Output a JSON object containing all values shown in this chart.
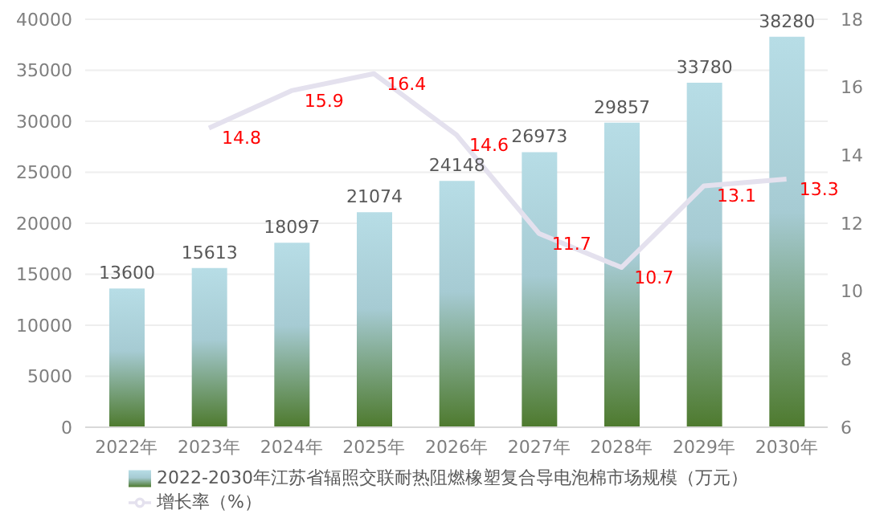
{
  "chart_data": {
    "type": "bar",
    "categories": [
      "2022年",
      "2023年",
      "2024年",
      "2025年",
      "2026年",
      "2027年",
      "2028年",
      "2029年",
      "2030年"
    ],
    "series": [
      {
        "name": "2022-2030年江苏省辐照交联耐热阻燃橡塑复合导电泡棉市场规模（万元）",
        "color": "#4e7a2e",
        "values": [
          13600,
          15613,
          18097,
          21074,
          24148,
          26973,
          29857,
          33780,
          38280
        ]
      },
      {
        "name": "增长率（%）",
        "type": "line",
        "axis": "y2",
        "color": "#e4e1ee",
        "values": [
          null,
          14.8,
          15.9,
          16.4,
          14.6,
          11.7,
          10.7,
          13.1,
          13.3
        ]
      }
    ],
    "ylim": [
      0,
      40000
    ],
    "yticks": [
      0,
      5000,
      10000,
      15000,
      20000,
      25000,
      30000,
      35000,
      40000
    ],
    "y2lim": [
      6,
      18
    ],
    "y2ticks": [
      6,
      8,
      10,
      12,
      14,
      16,
      18
    ],
    "grid": "y",
    "legend": "bottom",
    "data_labels": true,
    "marker": "none"
  }
}
